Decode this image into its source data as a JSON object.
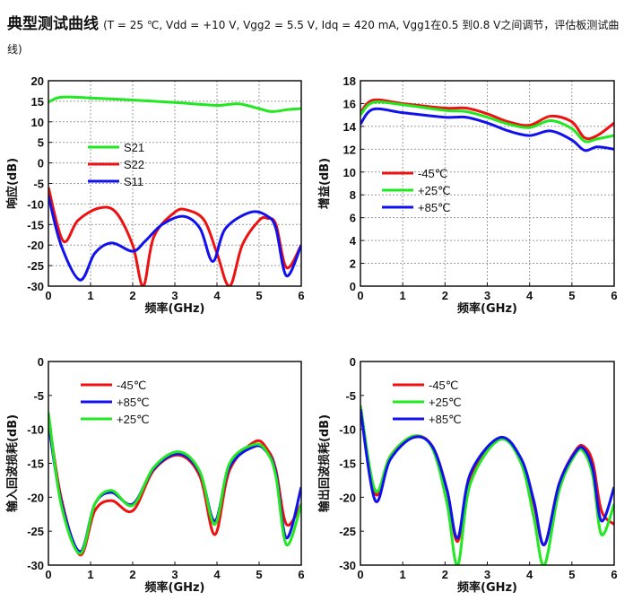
{
  "header": {
    "title": "典型测试曲线",
    "subtitle": "(T = 25 ℃, Vdd = +10 V, Vgg2 = 5.5 V, Idq = 420 mA, Vgg1在0.5 到0.8 V之间调节，评估板测试曲线)"
  },
  "chart_data": [
    {
      "type": "line",
      "xlabel": "频率(GHz)",
      "ylabel": "响应(dB)",
      "xlim": [
        0,
        6
      ],
      "ylim": [
        -30,
        20
      ],
      "xticks": [
        "0",
        "1",
        "2",
        "3",
        "4",
        "5",
        "6"
      ],
      "yticks": [
        "-30",
        "-25",
        "-20",
        "-15",
        "-10",
        "-5",
        "0",
        "5",
        "10",
        "15",
        "20"
      ],
      "grid": true,
      "legend": "center-left",
      "series": [
        {
          "name": "S21",
          "color": "#22e822",
          "x": [
            0,
            0.3,
            1,
            2,
            3,
            4,
            4.5,
            5,
            5.3,
            5.7,
            6
          ],
          "y": [
            14.8,
            16,
            15.8,
            15.3,
            14.7,
            14,
            14.4,
            13.2,
            12.5,
            13,
            13.2
          ]
        },
        {
          "name": "S22",
          "color": "#ee1111",
          "x": [
            0,
            0.35,
            0.7,
            1.2,
            1.6,
            2,
            2.25,
            2.5,
            3,
            3.3,
            3.7,
            4,
            4.3,
            4.6,
            5,
            5.2,
            5.4,
            5.65,
            6
          ],
          "y": [
            -6,
            -19,
            -14,
            -11,
            -12,
            -20,
            -30,
            -18,
            -12,
            -11.5,
            -14,
            -22,
            -30,
            -20,
            -14,
            -13.5,
            -15,
            -25.5,
            -20
          ]
        },
        {
          "name": "S11",
          "color": "#1111ee",
          "x": [
            0,
            0.3,
            0.75,
            1.1,
            1.5,
            2,
            2.3,
            2.7,
            3.2,
            3.6,
            3.9,
            4.2,
            4.8,
            5.2,
            5.4,
            5.65,
            6
          ],
          "y": [
            -8,
            -20,
            -28.5,
            -22,
            -19.5,
            -21.5,
            -19,
            -15,
            -13,
            -16,
            -24,
            -16,
            -12,
            -13,
            -16,
            -27.5,
            -20
          ]
        }
      ]
    },
    {
      "type": "line",
      "xlabel": "频率(GHz)",
      "ylabel": "增益(dB)",
      "xlim": [
        0,
        6
      ],
      "ylim": [
        0,
        18
      ],
      "xticks": [
        "0",
        "1",
        "2",
        "3",
        "4",
        "5",
        "6"
      ],
      "yticks": [
        "0",
        "2",
        "4",
        "6",
        "8",
        "10",
        "12",
        "14",
        "16",
        "18"
      ],
      "grid": true,
      "legend": "center-left",
      "series": [
        {
          "name": "-45℃",
          "color": "#ee1111",
          "x": [
            0,
            0.3,
            1,
            2,
            2.5,
            3,
            3.5,
            4,
            4.5,
            5,
            5.3,
            5.6,
            6
          ],
          "y": [
            15.2,
            16.3,
            16,
            15.6,
            15.6,
            15.1,
            14.4,
            14.1,
            14.9,
            14.4,
            13,
            13.2,
            14.3
          ]
        },
        {
          "name": "+25℃",
          "color": "#22e822",
          "x": [
            0,
            0.3,
            1,
            2,
            2.5,
            3,
            3.5,
            4,
            4.5,
            5,
            5.3,
            5.6,
            6
          ],
          "y": [
            15,
            16.1,
            15.9,
            15.4,
            15.3,
            14.8,
            14.2,
            13.9,
            14.5,
            13.8,
            12.7,
            12.9,
            13.2
          ]
        },
        {
          "name": "+85℃",
          "color": "#1111ee",
          "x": [
            0,
            0.3,
            1,
            2,
            2.5,
            3,
            3.5,
            4,
            4.5,
            5,
            5.3,
            5.6,
            6
          ],
          "y": [
            14.2,
            15.5,
            15.2,
            14.8,
            14.8,
            14.3,
            13.6,
            13.2,
            13.6,
            12.8,
            11.9,
            12.2,
            12
          ]
        }
      ]
    },
    {
      "type": "line",
      "xlabel": "频率(GHz)",
      "ylabel": "输入回波损耗(dB)",
      "xlim": [
        0,
        6
      ],
      "ylim": [
        -30,
        0
      ],
      "xticks": [
        "0",
        "1",
        "2",
        "3",
        "4",
        "5",
        "6"
      ],
      "yticks": [
        "-30",
        "-25",
        "-20",
        "-15",
        "-10",
        "-5",
        "0"
      ],
      "grid": false,
      "legend": "top-left",
      "series": [
        {
          "name": "-45℃",
          "color": "#ee1111",
          "x": [
            0,
            0.3,
            0.75,
            1.1,
            1.5,
            2,
            2.5,
            3.1,
            3.6,
            3.95,
            4.3,
            4.9,
            5.2,
            5.4,
            5.65,
            6
          ],
          "y": [
            -8,
            -20,
            -28.5,
            -22,
            -20.5,
            -22,
            -16,
            -13.8,
            -17,
            -25.5,
            -16,
            -11.8,
            -13,
            -16,
            -24,
            -21
          ]
        },
        {
          "name": "+85℃",
          "color": "#1111ee",
          "x": [
            0,
            0.3,
            0.75,
            1.1,
            1.5,
            2,
            2.5,
            3.1,
            3.6,
            3.95,
            4.3,
            4.9,
            5.2,
            5.4,
            5.65,
            6
          ],
          "y": [
            -9,
            -20.5,
            -28,
            -21,
            -19.3,
            -21,
            -15.8,
            -13.6,
            -16.5,
            -23.5,
            -15.5,
            -12.5,
            -13.5,
            -16.5,
            -26,
            -18.5
          ]
        },
        {
          "name": "+25℃",
          "color": "#22e822",
          "x": [
            0,
            0.3,
            0.75,
            1.1,
            1.5,
            2,
            2.5,
            3.1,
            3.6,
            3.95,
            4.3,
            4.9,
            5.2,
            5.4,
            5.65,
            6
          ],
          "y": [
            -7.5,
            -21,
            -28.3,
            -21,
            -19,
            -21.2,
            -15.6,
            -13.3,
            -16.3,
            -24,
            -15,
            -12.2,
            -13.5,
            -17,
            -27,
            -21
          ]
        }
      ]
    },
    {
      "type": "line",
      "xlabel": "频率(GHz)",
      "ylabel": "输出回波损耗(dB)",
      "xlim": [
        0,
        6
      ],
      "ylim": [
        -30,
        0
      ],
      "xticks": [
        "0",
        "1",
        "2",
        "3",
        "4",
        "5",
        "6"
      ],
      "yticks": [
        "-30",
        "-25",
        "-20",
        "-15",
        "-10",
        "-5",
        "0"
      ],
      "grid": false,
      "legend": "top-center",
      "series": [
        {
          "name": "-45℃",
          "color": "#ee1111",
          "x": [
            0,
            0.35,
            0.7,
            1.25,
            1.7,
            2.05,
            2.3,
            2.6,
            3.3,
            3.8,
            4.1,
            4.35,
            4.7,
            5.1,
            5.3,
            5.5,
            5.7,
            6
          ],
          "y": [
            -6.5,
            -19.5,
            -14,
            -11,
            -12.5,
            -19,
            -26.5,
            -17,
            -11.3,
            -14.5,
            -21,
            -27,
            -18,
            -13,
            -12.6,
            -15,
            -22,
            -24
          ]
        },
        {
          "name": "+25℃",
          "color": "#22e822",
          "x": [
            0,
            0.35,
            0.7,
            1.25,
            1.7,
            2.05,
            2.3,
            2.6,
            3.3,
            3.8,
            4.1,
            4.35,
            4.7,
            5.1,
            5.3,
            5.5,
            5.7,
            6
          ],
          "y": [
            -6.5,
            -19,
            -14,
            -11,
            -12.8,
            -21,
            -30,
            -18,
            -11.5,
            -15,
            -23,
            -30,
            -19,
            -13.5,
            -13.5,
            -17,
            -25.5,
            -21
          ]
        },
        {
          "name": "+85℃",
          "color": "#1111ee",
          "x": [
            0,
            0.35,
            0.7,
            1.25,
            1.7,
            2.05,
            2.3,
            2.6,
            3.3,
            3.8,
            4.1,
            4.35,
            4.7,
            5.1,
            5.3,
            5.5,
            5.7,
            6
          ],
          "y": [
            -7,
            -20.5,
            -14.5,
            -11.2,
            -12.5,
            -19,
            -26,
            -16.5,
            -11.2,
            -14.3,
            -20.5,
            -27,
            -18,
            -13.2,
            -13,
            -16,
            -23.5,
            -18.5
          ]
        }
      ]
    }
  ]
}
